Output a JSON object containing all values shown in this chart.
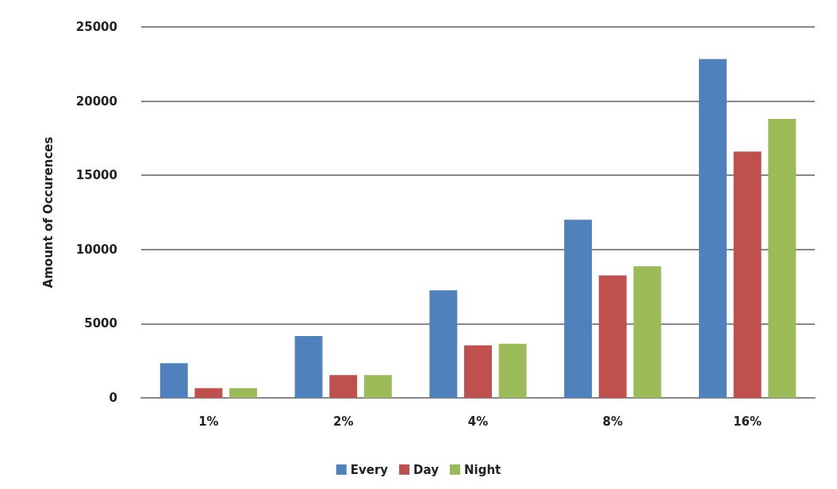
{
  "chart_data": {
    "type": "bar",
    "ylabel": "Amount of Occurences",
    "categories": [
      "1%",
      "2%",
      "4%",
      "8%",
      "16%"
    ],
    "series": [
      {
        "name": "Every",
        "color": "#4f81bd",
        "values": [
          2340,
          4160,
          7250,
          12000,
          22830
        ]
      },
      {
        "name": "Day",
        "color": "#c0504d",
        "values": [
          650,
          1540,
          3540,
          8250,
          16600
        ]
      },
      {
        "name": "Night",
        "color": "#9bbb59",
        "values": [
          650,
          1540,
          3650,
          8870,
          18810
        ]
      }
    ],
    "ylim": [
      0,
      25000
    ],
    "yticks": [
      0,
      5000,
      10000,
      15000,
      20000,
      25000
    ],
    "grid": "y",
    "legend": "bottom"
  }
}
